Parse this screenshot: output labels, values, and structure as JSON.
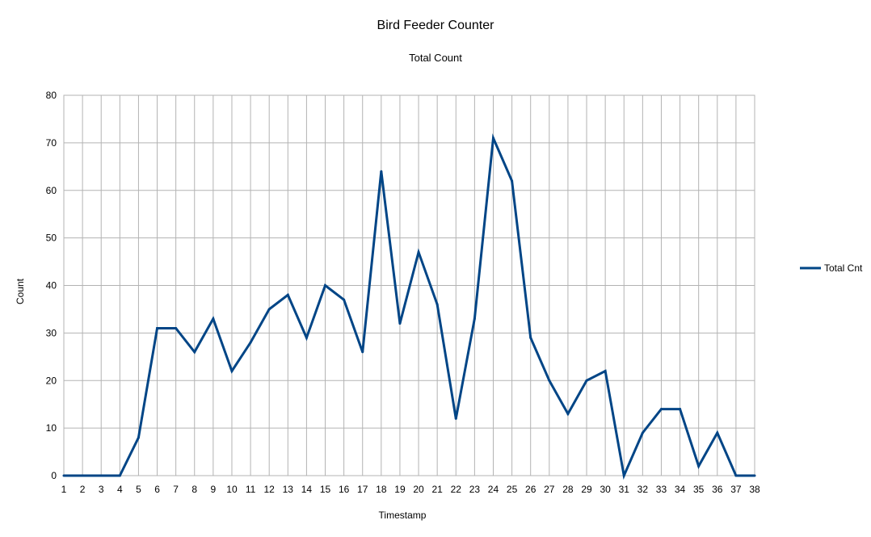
{
  "chart_data": {
    "type": "line",
    "title": "Bird Feeder Counter",
    "subtitle": "Total Count",
    "xlabel": "Timestamp",
    "ylabel": "Count",
    "categories": [
      "1",
      "2",
      "3",
      "4",
      "5",
      "6",
      "7",
      "8",
      "9",
      "10",
      "11",
      "12",
      "13",
      "14",
      "15",
      "16",
      "17",
      "18",
      "19",
      "20",
      "21",
      "22",
      "23",
      "24",
      "25",
      "26",
      "27",
      "28",
      "29",
      "30",
      "31",
      "32",
      "33",
      "34",
      "35",
      "36",
      "37",
      "38"
    ],
    "series": [
      {
        "name": "Total Cnt",
        "color": "#004586",
        "values": [
          0,
          0,
          0,
          0,
          8,
          31,
          31,
          26,
          33,
          22,
          28,
          35,
          38,
          29,
          40,
          37,
          26,
          64,
          32,
          47,
          36,
          12,
          33,
          71,
          62,
          29,
          20,
          13,
          20,
          22,
          0,
          9,
          14,
          14,
          2,
          9,
          0,
          0
        ]
      }
    ],
    "ylim": [
      0,
      80
    ],
    "yticks": [
      0,
      10,
      20,
      30,
      40,
      50,
      60,
      70,
      80
    ],
    "grid": true,
    "gridColor": "#b3b3b3",
    "legend_position": "right"
  }
}
